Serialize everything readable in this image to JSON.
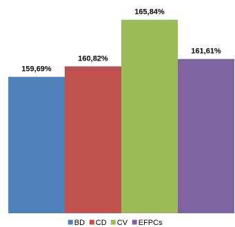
{
  "chart_data": {
    "type": "bar",
    "categories": [
      null
    ],
    "series": [
      {
        "name": "BD",
        "color": "#4f81bd",
        "values": [
          159.69
        ],
        "value_labels": [
          "159,69%"
        ]
      },
      {
        "name": "CD",
        "color": "#c0504d",
        "values": [
          160.82
        ],
        "value_labels": [
          "160,82%"
        ]
      },
      {
        "name": "CV",
        "color": "#9bbb59",
        "values": [
          165.84
        ],
        "value_labels": [
          "165,84%"
        ]
      },
      {
        "name": "EFPCs",
        "color": "#8064a2",
        "values": [
          161.61
        ],
        "value_labels": [
          "161,61%"
        ]
      }
    ],
    "ylim": [
      145,
      167
    ],
    "legend": "bottom"
  }
}
